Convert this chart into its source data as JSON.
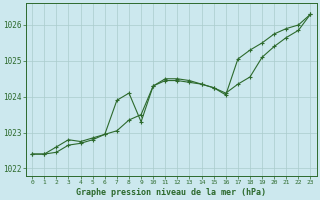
{
  "background_color": "#cce8ee",
  "plot_bg_color": "#cce8ee",
  "grid_color": "#aacccc",
  "line_color": "#2d6a2d",
  "xlabel": "Graphe pression niveau de la mer (hPa)",
  "ylim": [
    1021.8,
    1026.6
  ],
  "xlim": [
    -0.5,
    23.5
  ],
  "yticks": [
    1022,
    1023,
    1024,
    1025,
    1026
  ],
  "xticks": [
    0,
    1,
    2,
    3,
    4,
    5,
    6,
    7,
    8,
    9,
    10,
    11,
    12,
    13,
    14,
    15,
    16,
    17,
    18,
    19,
    20,
    21,
    22,
    23
  ],
  "series1_x": [
    0,
    1,
    2,
    3,
    4,
    5,
    6,
    7,
    8,
    9,
    10,
    11,
    12,
    13,
    14,
    15,
    16,
    17,
    18,
    19,
    20,
    21,
    22,
    23
  ],
  "series1_y": [
    1022.4,
    1022.4,
    1022.45,
    1022.65,
    1022.7,
    1022.8,
    1022.95,
    1023.05,
    1023.35,
    1023.5,
    1024.3,
    1024.45,
    1024.45,
    1024.4,
    1024.35,
    1024.25,
    1024.1,
    1024.35,
    1024.55,
    1025.1,
    1025.4,
    1025.65,
    1025.85,
    1026.3
  ],
  "series2_x": [
    0,
    1,
    2,
    3,
    4,
    5,
    6,
    7,
    8,
    9,
    10,
    11,
    12,
    13,
    14,
    15,
    16,
    17,
    18,
    19,
    20,
    21,
    22,
    23
  ],
  "series2_y": [
    1022.4,
    1022.4,
    1022.6,
    1022.8,
    1022.75,
    1022.85,
    1022.95,
    1023.9,
    1024.1,
    1023.3,
    1024.3,
    1024.5,
    1024.5,
    1024.45,
    1024.35,
    1024.25,
    1024.05,
    1025.05,
    1025.3,
    1025.5,
    1025.75,
    1025.9,
    1026.0,
    1026.3
  ]
}
